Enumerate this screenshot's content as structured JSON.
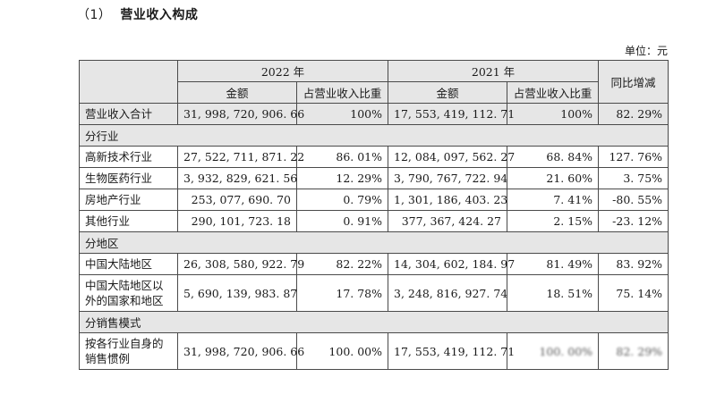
{
  "heading": {
    "number": "（1）",
    "title": "营业收入构成"
  },
  "unit": "单位：元",
  "headers": {
    "year_2022": "2022 年",
    "year_2021": "2021 年",
    "amount": "金额",
    "share": "占营业收入比重",
    "change": "同比增减"
  },
  "rows": {
    "total": {
      "label": "营业收入合计",
      "amt2022": "31, 998, 720, 906. 66",
      "pct2022": "100%",
      "amt2021": "17, 553, 419, 112. 71",
      "pct2021": "100%",
      "change": "82. 29%"
    },
    "sec_industry": "分行业",
    "hitech": {
      "label": "高新技术行业",
      "amt2022": "27, 522, 711, 871. 22",
      "pct2022": "86. 01%",
      "amt2021": "12, 084, 097, 562. 27",
      "pct2021": "68. 84%",
      "change": "127. 76%"
    },
    "biomed": {
      "label": "生物医药行业",
      "amt2022": "3, 932, 829, 621. 56",
      "pct2022": "12. 29%",
      "amt2021": "3, 790, 767, 722. 94",
      "pct2021": "21. 60%",
      "change": "3. 75%"
    },
    "realestate": {
      "label": "房地产行业",
      "amt2022": "253, 077, 690. 70",
      "pct2022": "0. 79%",
      "amt2021": "1, 301, 186, 403. 23",
      "pct2021": "7. 41%",
      "change": "-80. 55%"
    },
    "other": {
      "label": "其他行业",
      "amt2022": "290, 101, 723. 18",
      "pct2022": "0. 91%",
      "amt2021": "377, 367, 424. 27",
      "pct2021": "2. 15%",
      "change": "-23. 12%"
    },
    "sec_region": "分地区",
    "mainland": {
      "label": "中国大陆地区",
      "amt2022": "26, 308, 580, 922. 79",
      "pct2022": "82. 22%",
      "amt2021": "14, 304, 602, 184. 97",
      "pct2021": "81. 49%",
      "change": "83. 92%"
    },
    "overseas": {
      "label": "中国大陆地区以外的国家和地区",
      "amt2022": "5, 690, 139, 983. 87",
      "pct2022": "17. 78%",
      "amt2021": "3, 248, 816, 927. 74",
      "pct2021": "18. 51%",
      "change": "75. 14%"
    },
    "sec_sales": "分销售模式",
    "sales": {
      "label": "按各行业自身的销售惯例",
      "amt2022": "31, 998, 720, 906. 66",
      "pct2022": "100. 00%",
      "amt2021": "17, 553, 419, 112. 71",
      "pct2021": "100. 00%",
      "change": "82. 29%"
    }
  }
}
